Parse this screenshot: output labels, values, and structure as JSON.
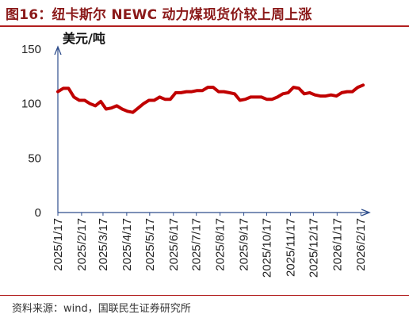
{
  "header": {
    "title": "图16：纽卡斯尔 NEWC 动力煤现货价较上周上涨"
  },
  "footer": {
    "source": "资料来源：wind，国联民生证券研究所"
  },
  "chart_data": {
    "type": "line",
    "title": "图16：纽卡斯尔 NEWC 动力煤现货价较上周上涨",
    "ylabel": "美元/吨",
    "xlabel": "",
    "ylim": [
      0,
      150
    ],
    "yticks": [
      0,
      50,
      100,
      150
    ],
    "xlim": [
      "2025-01-17",
      "2026-02-24"
    ],
    "xticks": [
      "2025/1/17",
      "2025/2/17",
      "2025/3/17",
      "2025/4/17",
      "2025/5/17",
      "2025/6/17",
      "2025/7/17",
      "2025/8/17",
      "2025/9/17",
      "2025/10/17",
      "2025/11/17",
      "2025/12/17",
      "2026/1/17",
      "2026/2/17"
    ],
    "line_color": "#c00000",
    "grid": false,
    "series": [
      {
        "x": [
          "2025-01-17",
          "2025-01-24",
          "2025-01-31",
          "2025-02-07",
          "2025-02-14",
          "2025-02-21",
          "2025-02-28",
          "2025-03-07",
          "2025-03-14",
          "2025-03-21",
          "2025-03-28",
          "2025-04-04",
          "2025-04-11",
          "2025-04-18",
          "2025-04-25",
          "2025-05-02",
          "2025-05-09",
          "2025-05-16",
          "2025-05-23",
          "2025-05-30",
          "2025-06-06",
          "2025-06-13",
          "2025-06-20",
          "2025-06-27",
          "2025-07-04",
          "2025-07-11",
          "2025-07-18",
          "2025-07-25",
          "2025-08-01",
          "2025-08-08",
          "2025-08-15",
          "2025-08-22",
          "2025-08-29",
          "2025-09-05",
          "2025-09-12",
          "2025-09-19",
          "2025-09-26",
          "2025-10-03",
          "2025-10-10",
          "2025-10-17",
          "2025-10-24",
          "2025-10-31",
          "2025-11-07",
          "2025-11-14",
          "2025-11-21",
          "2025-11-28",
          "2025-12-05",
          "2025-12-12",
          "2025-12-19",
          "2025-12-26",
          "2026-01-02",
          "2026-01-09",
          "2026-01-16",
          "2026-01-23",
          "2026-01-30",
          "2026-02-06",
          "2026-02-13",
          "2026-02-20"
        ],
        "values": [
          111,
          114,
          114,
          106,
          103,
          103,
          100,
          98,
          102,
          95,
          96,
          98,
          95,
          93,
          92,
          96,
          100,
          103,
          103,
          106,
          104,
          104,
          110,
          110,
          111,
          111,
          112,
          112,
          115,
          115,
          111,
          111,
          110,
          109,
          103,
          104,
          106,
          106,
          106,
          104,
          104,
          106,
          109,
          110,
          115,
          114,
          109,
          110,
          108,
          107,
          107,
          108,
          107,
          110,
          111,
          111,
          115,
          117
        ]
      }
    ]
  }
}
